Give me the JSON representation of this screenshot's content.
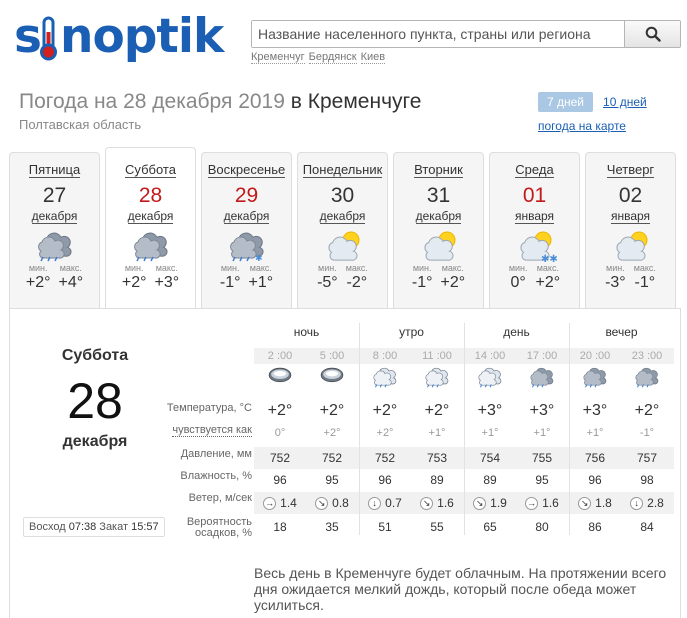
{
  "header": {
    "logo": "sinoptik",
    "search_placeholder": "Название населенного пункта, страны или региона",
    "quick_links": [
      "Кременчуг",
      "Бердянск",
      "Киев"
    ]
  },
  "title": {
    "prefix": "Погода на 28 декабря 2019",
    "in": "в",
    "city": "Кременчуге",
    "region": "Полтавская область"
  },
  "view_tabs": {
    "active": "7 дней",
    "other": "10 дней",
    "map": "погода на карте"
  },
  "days": [
    {
      "name": "Пятница",
      "num": "27",
      "month": "декабря",
      "red": false,
      "icon": "rain-cloud-icon",
      "min_label": "мин.",
      "max_label": "макс.",
      "min": "+2°",
      "max": "+4°"
    },
    {
      "name": "Суббота",
      "num": "28",
      "month": "декабря",
      "red": true,
      "icon": "rain-cloud-icon",
      "min_label": "мин.",
      "max_label": "макс.",
      "min": "+2°",
      "max": "+3°"
    },
    {
      "name": "Воскресенье",
      "num": "29",
      "month": "декабря",
      "red": true,
      "icon": "snow-rain-icon",
      "min_label": "мин.",
      "max_label": "макс.",
      "min": "-1°",
      "max": "+1°"
    },
    {
      "name": "Понедельник",
      "num": "30",
      "month": "декабря",
      "red": false,
      "icon": "partly-cloudy-icon",
      "min_label": "мин.",
      "max_label": "макс.",
      "min": "-5°",
      "max": "-2°"
    },
    {
      "name": "Вторник",
      "num": "31",
      "month": "декабря",
      "red": false,
      "icon": "partly-cloudy-icon",
      "min_label": "мин.",
      "max_label": "макс.",
      "min": "-1°",
      "max": "+2°"
    },
    {
      "name": "Среда",
      "num": "01",
      "month": "января",
      "red": true,
      "icon": "sun-snow-icon",
      "min_label": "мин.",
      "max_label": "макс.",
      "min": "0°",
      "max": "+2°"
    },
    {
      "name": "Четверг",
      "num": "02",
      "month": "января",
      "red": false,
      "icon": "partly-cloudy-icon",
      "min_label": "мин.",
      "max_label": "макс.",
      "min": "-3°",
      "max": "-1°"
    }
  ],
  "detail": {
    "day_name": "Суббота",
    "day_num": "28",
    "month": "декабря",
    "sunrise_label": "Восход",
    "sunrise": "07:38",
    "sunset_label": "Закат",
    "sunset": "15:57",
    "row_labels": {
      "temp": "Температура, °С",
      "feels": "чувствуется как",
      "pressure": "Давление, мм",
      "humidity": "Влажность, %",
      "wind": "Ветер, м/сек",
      "precip1": "Вероятность",
      "precip2": "осадков, %"
    },
    "periods": [
      "ночь",
      "утро",
      "день",
      "вечер"
    ],
    "hours": [
      {
        "time": "2 :00",
        "icon": "night-cloud-icon",
        "temp": "+2°",
        "feels": "0°",
        "pressure": "752",
        "humidity": "96",
        "wind_dir": "→",
        "wind": "1.4",
        "precip": "18"
      },
      {
        "time": "5 :00",
        "icon": "night-cloud-icon",
        "temp": "+2°",
        "feels": "+2°",
        "pressure": "752",
        "humidity": "95",
        "wind_dir": "↘",
        "wind": "0.8",
        "precip": "35"
      },
      {
        "time": "8 :00",
        "icon": "light-rain-icon",
        "temp": "+2°",
        "feels": "+2°",
        "pressure": "752",
        "humidity": "96",
        "wind_dir": "↓",
        "wind": "0.7",
        "precip": "51"
      },
      {
        "time": "11 :00",
        "icon": "light-rain-icon",
        "temp": "+2°",
        "feels": "+1°",
        "pressure": "753",
        "humidity": "89",
        "wind_dir": "↘",
        "wind": "1.6",
        "precip": "55"
      },
      {
        "time": "14 :00",
        "icon": "light-rain-icon",
        "temp": "+3°",
        "feels": "+1°",
        "pressure": "754",
        "humidity": "89",
        "wind_dir": "↘",
        "wind": "1.9",
        "precip": "65"
      },
      {
        "time": "17 :00",
        "icon": "rain-cloud-icon",
        "temp": "+3°",
        "feels": "+1°",
        "pressure": "755",
        "humidity": "95",
        "wind_dir": "→",
        "wind": "1.6",
        "precip": "80"
      },
      {
        "time": "20 :00",
        "icon": "rain-cloud-icon",
        "temp": "+3°",
        "feels": "+1°",
        "pressure": "756",
        "humidity": "96",
        "wind_dir": "↘",
        "wind": "1.8",
        "precip": "86"
      },
      {
        "time": "23 :00",
        "icon": "rain-cloud-icon",
        "temp": "+2°",
        "feels": "-1°",
        "pressure": "757",
        "humidity": "98",
        "wind_dir": "↓",
        "wind": "2.8",
        "precip": "84"
      }
    ],
    "description": "Весь день в Кременчуге будет облачным. На протяжении всего дня ожидается мелкий дождь, который после обеда может усилиться."
  },
  "colors": {
    "brand": "#1a5fb4",
    "red_date": "#c11a1a",
    "tab_active": "#aac7e4"
  }
}
